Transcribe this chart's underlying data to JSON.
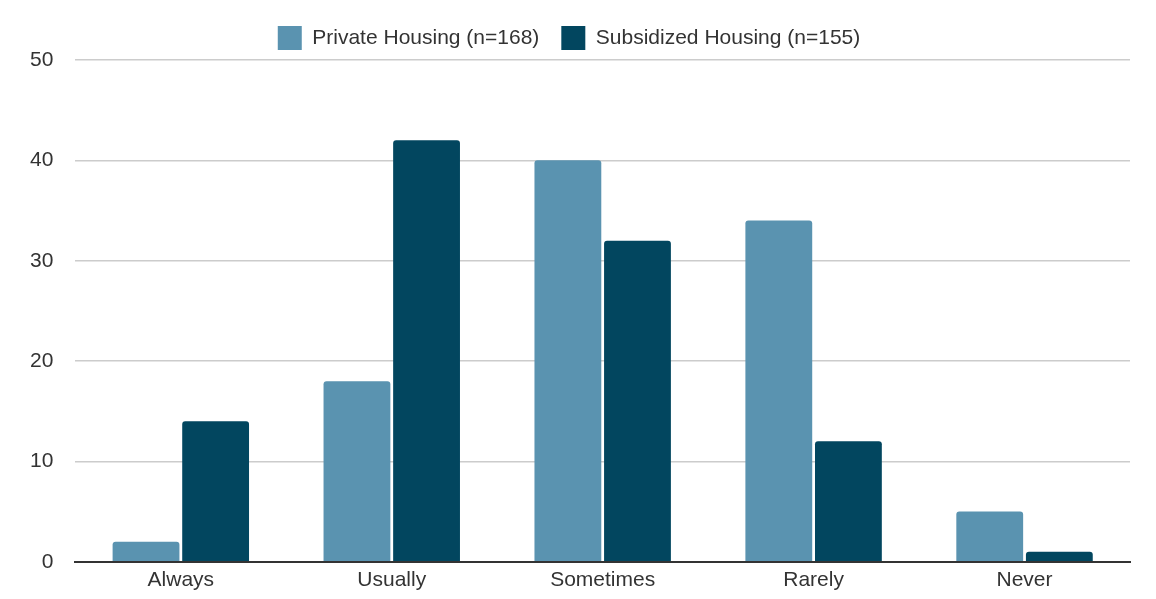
{
  "chart_data": {
    "type": "bar",
    "categories": [
      "Always",
      "Usually",
      "Sometimes",
      "Rarely",
      "Never"
    ],
    "series": [
      {
        "name": "Private Housing (n=168)",
        "color": "#5a93b0",
        "values": [
          2,
          18,
          40,
          34,
          5
        ]
      },
      {
        "name": "Subsidized Housing (n=155)",
        "color": "#02465f",
        "values": [
          14,
          42,
          32,
          12,
          1
        ]
      }
    ],
    "ylim": [
      0,
      50
    ],
    "yticks": [
      0,
      10,
      20,
      30,
      40,
      50
    ],
    "grid": "y",
    "legend": "top"
  }
}
